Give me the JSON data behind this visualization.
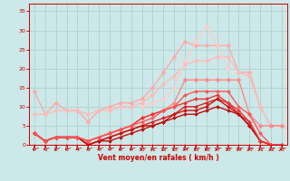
{
  "background_color": "#cce8e8",
  "grid_color": "#aacccc",
  "xlabel": "Vent moyen/en rafales ( km/h )",
  "xlim": [
    -0.5,
    23.5
  ],
  "ylim": [
    0,
    37
  ],
  "yticks": [
    0,
    5,
    10,
    15,
    20,
    25,
    30,
    35
  ],
  "xticks": [
    0,
    1,
    2,
    3,
    4,
    5,
    6,
    7,
    8,
    9,
    10,
    11,
    12,
    13,
    14,
    15,
    16,
    17,
    18,
    19,
    20,
    21,
    22,
    23
  ],
  "series": [
    {
      "color": "#ffaaaa",
      "linewidth": 1.0,
      "marker": "D",
      "markersize": 2.5,
      "data": [
        14,
        8,
        11,
        9,
        9,
        6,
        9,
        10,
        11,
        11,
        12,
        15,
        19,
        23,
        27,
        26,
        26,
        26,
        26,
        19,
        19,
        10,
        5,
        5
      ]
    },
    {
      "color": "#ffbbbb",
      "linewidth": 1.0,
      "marker": "D",
      "markersize": 2.5,
      "data": [
        8,
        8,
        9,
        9,
        9,
        8,
        9,
        9,
        10,
        10,
        11,
        13,
        16,
        18,
        21,
        22,
        22,
        23,
        23,
        19,
        18,
        10,
        5,
        5
      ]
    },
    {
      "color": "#ff8888",
      "linewidth": 1.0,
      "marker": "D",
      "markersize": 2.5,
      "data": [
        3,
        1,
        2,
        2,
        2,
        1,
        2,
        3,
        4,
        5,
        7,
        8,
        9,
        11,
        17,
        17,
        17,
        17,
        17,
        17,
        8,
        5,
        5,
        5
      ]
    },
    {
      "color": "#dd2222",
      "linewidth": 1.0,
      "marker": "D",
      "markersize": 2.0,
      "data": [
        3,
        1,
        2,
        2,
        2,
        0,
        1,
        2,
        3,
        4,
        5,
        6,
        7,
        8,
        10,
        10,
        11,
        12,
        11,
        8,
        6,
        1,
        0,
        0
      ]
    },
    {
      "color": "#cc1111",
      "linewidth": 1.0,
      "marker": "D",
      "markersize": 2.0,
      "data": [
        3,
        1,
        2,
        2,
        2,
        0,
        1,
        2,
        3,
        4,
        5,
        5,
        6,
        8,
        9,
        9,
        10,
        12,
        10,
        8,
        5,
        1,
        0,
        0
      ]
    },
    {
      "color": "#bb1111",
      "linewidth": 1.0,
      "marker": "D",
      "markersize": 2.0,
      "data": [
        3,
        1,
        2,
        2,
        2,
        0,
        1,
        1,
        2,
        3,
        4,
        5,
        6,
        7,
        8,
        8,
        9,
        10,
        9,
        8,
        5,
        1,
        0,
        0
      ]
    },
    {
      "color": "#ee3333",
      "linewidth": 1.0,
      "marker": "D",
      "markersize": 2.0,
      "data": [
        3,
        1,
        2,
        2,
        2,
        1,
        2,
        3,
        4,
        5,
        7,
        8,
        9,
        10,
        11,
        12,
        12,
        13,
        11,
        9,
        6,
        1,
        0,
        0
      ]
    },
    {
      "color": "#ff5555",
      "linewidth": 1.0,
      "marker": "D",
      "markersize": 2.0,
      "data": [
        3,
        1,
        2,
        2,
        2,
        1,
        2,
        3,
        4,
        5,
        6,
        7,
        9,
        10,
        13,
        14,
        14,
        14,
        14,
        10,
        8,
        3,
        0,
        0
      ]
    },
    {
      "color": "#ffcccc",
      "linewidth": 1.0,
      "marker": "D",
      "markersize": 2.5,
      "data": [
        null,
        null,
        null,
        null,
        null,
        null,
        null,
        null,
        null,
        null,
        10,
        11,
        12,
        15,
        22,
        27,
        31,
        26,
        20,
        null,
        null,
        null,
        null,
        null
      ]
    }
  ]
}
